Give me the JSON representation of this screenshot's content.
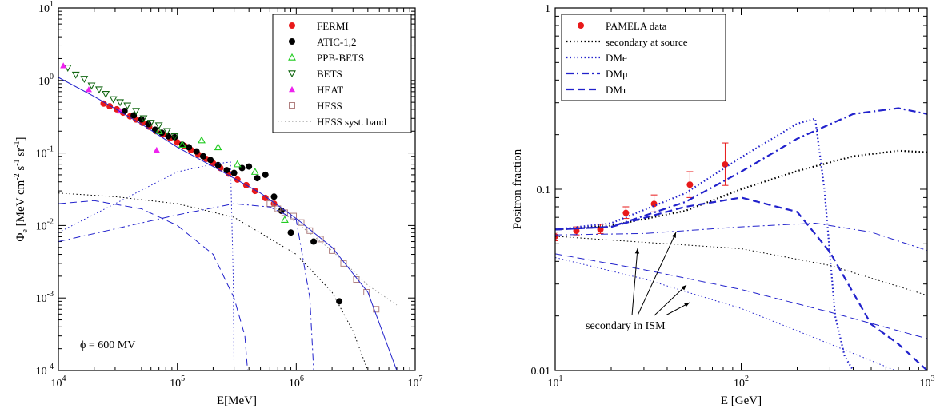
{
  "chart_data": [
    {
      "type": "scatter",
      "xlabel": "E[MeV]",
      "ylabel": "Φe [MeV cm-2 s-1 sr-1]",
      "xscale": "log",
      "yscale": "log",
      "xlim": [
        10000,
        10000000
      ],
      "ylim": [
        0.0001,
        10
      ],
      "x_ticks": [
        {
          "m": "10",
          "e": "4"
        },
        {
          "m": "10",
          "e": "5"
        },
        {
          "m": "10",
          "e": "6"
        },
        {
          "m": "10",
          "e": "7"
        }
      ],
      "y_ticks": [
        {
          "m": "10",
          "e": "-4"
        },
        {
          "m": "10",
          "e": "-3"
        },
        {
          "m": "10",
          "e": "-2"
        },
        {
          "m": "10",
          "e": "-1"
        },
        {
          "m": "10",
          "e": "0"
        },
        {
          "m": "10",
          "e": "1"
        }
      ],
      "legend_position": "top-right",
      "annotation": "ϕ = 600 MV",
      "series": [
        {
          "name": "FERMI",
          "color": "#e8191a",
          "marker": "filled-circle",
          "x": [
            24000,
            27000,
            31000,
            35000,
            40000,
            45000,
            51000,
            58000,
            66000,
            76000,
            87000,
            100000,
            115000,
            130000,
            150000,
            175000,
            200000,
            230000,
            270000,
            320000,
            380000,
            450000,
            550000,
            650000,
            750000
          ],
          "y": [
            0.48,
            0.44,
            0.4,
            0.36,
            0.32,
            0.29,
            0.26,
            0.23,
            0.2,
            0.18,
            0.16,
            0.14,
            0.125,
            0.11,
            0.095,
            0.083,
            0.072,
            0.062,
            0.052,
            0.043,
            0.036,
            0.03,
            0.024,
            0.02,
            0.016
          ]
        },
        {
          "name": "ATIC-1,2",
          "color": "#000000",
          "marker": "filled-circle",
          "x": [
            36000,
            43000,
            50000,
            57000,
            65000,
            74000,
            84000,
            95000,
            110000,
            125000,
            145000,
            165000,
            190000,
            220000,
            260000,
            300000,
            350000,
            400000,
            470000,
            550000,
            650000,
            750000,
            900000,
            1400000,
            2300000
          ],
          "y": [
            0.38,
            0.33,
            0.29,
            0.25,
            0.21,
            0.19,
            0.17,
            0.165,
            0.13,
            0.12,
            0.105,
            0.09,
            0.08,
            0.068,
            0.058,
            0.053,
            0.062,
            0.065,
            0.045,
            0.05,
            0.025,
            0.016,
            0.008,
            0.006,
            0.0009
          ]
        },
        {
          "name": "PPB-BETS",
          "color": "#22cc22",
          "marker": "open-triangle-up",
          "x": [
            70000,
            110000,
            160000,
            220000,
            320000,
            450000,
            800000
          ],
          "y": [
            0.2,
            0.13,
            0.15,
            0.12,
            0.07,
            0.055,
            0.012
          ]
        },
        {
          "name": "BETS",
          "color": "#116611",
          "marker": "open-triangle-down",
          "x": [
            12000,
            14000,
            16500,
            19000,
            22000,
            25000,
            29000,
            33000,
            38000,
            45000,
            52000,
            60000,
            70000,
            82000,
            95000
          ],
          "y": [
            1.5,
            1.2,
            1.05,
            0.85,
            0.75,
            0.65,
            0.55,
            0.5,
            0.45,
            0.38,
            0.3,
            0.26,
            0.24,
            0.2,
            0.17
          ]
        },
        {
          "name": "HEAT",
          "color": "#ee22ee",
          "marker": "filled-triangle-up",
          "x": [
            11000,
            18000,
            33000,
            67000
          ],
          "y": [
            1.6,
            0.75,
            0.38,
            0.11
          ]
        },
        {
          "name": "HESS",
          "color": "#b08080",
          "marker": "open-square",
          "x": [
            600000,
            700000,
            800000,
            950000,
            1100000,
            1300000,
            1600000,
            2000000,
            2500000,
            3200000,
            3900000,
            4700000
          ],
          "y": [
            0.02,
            0.017,
            0.015,
            0.0135,
            0.011,
            0.0085,
            0.0065,
            0.0045,
            0.003,
            0.0018,
            0.0012,
            0.0007
          ]
        },
        {
          "name": "HESS syst. band",
          "color": "#999999",
          "marker": "dotted-line",
          "x": [
            600000,
            1000000,
            2000000,
            4000000,
            7000000
          ],
          "y": [
            0.02,
            0.011,
            0.0045,
            0.0015,
            0.0008
          ]
        },
        {
          "color": "#2222cc",
          "style": "solid",
          "x": [
            10000,
            20000,
            50000,
            100000,
            200000,
            500000,
            1000000,
            2000000,
            4000000,
            7000000
          ],
          "y": [
            1.1,
            0.6,
            0.25,
            0.12,
            0.065,
            0.028,
            0.0125,
            0.005,
            0.0012,
            0.0001
          ]
        },
        {
          "color": "#2222cc",
          "style": "dotted",
          "x": [
            10000,
            30000,
            100000,
            200000,
            280000,
            295000,
            300000
          ],
          "y": [
            0.008,
            0.02,
            0.055,
            0.07,
            0.075,
            0.002,
            0.0001
          ]
        },
        {
          "color": "#2222cc",
          "style": "dashdot",
          "x": [
            10000,
            30000,
            100000,
            300000,
            600000,
            1000000,
            1300000,
            1400000
          ],
          "y": [
            0.006,
            0.009,
            0.014,
            0.02,
            0.018,
            0.012,
            0.001,
            0.0001
          ]
        },
        {
          "color": "#2222cc",
          "style": "dashed",
          "x": [
            10000,
            20000,
            50000,
            100000,
            200000,
            300000,
            370000,
            390000
          ],
          "y": [
            0.02,
            0.022,
            0.017,
            0.01,
            0.004,
            0.001,
            0.0003,
            0.0001
          ]
        },
        {
          "color": "#000000",
          "style": "dotted",
          "x": [
            10000,
            30000,
            100000,
            300000,
            1000000,
            2000000,
            3000000,
            4000000
          ],
          "y": [
            0.028,
            0.025,
            0.02,
            0.013,
            0.004,
            0.0012,
            0.00035,
            0.0001
          ]
        }
      ]
    },
    {
      "type": "scatter",
      "xlabel": "E [GeV]",
      "ylabel": "Positron fraction",
      "xscale": "log",
      "yscale": "log",
      "xlim": [
        10,
        1000
      ],
      "ylim": [
        0.01,
        1
      ],
      "x_ticks": [
        {
          "m": "10",
          "e": "1"
        },
        {
          "m": "10",
          "e": "2"
        },
        {
          "m": "10",
          "e": "3"
        }
      ],
      "y_ticks": [
        {
          "m": "0.01",
          "e": ""
        },
        {
          "m": "0.1",
          "e": ""
        },
        {
          "m": "1",
          "e": ""
        }
      ],
      "legend_position": "top-left",
      "annotation": "secondary in ISM",
      "series": [
        {
          "name": "PAMELA data",
          "color": "#e8191a",
          "marker": "filled-circle",
          "x": [
            10,
            13,
            17.5,
            24,
            34,
            53,
            82
          ],
          "y": [
            0.055,
            0.059,
            0.06,
            0.074,
            0.083,
            0.106,
            0.137
          ],
          "err_low": [
            0.052,
            0.056,
            0.057,
            0.069,
            0.075,
            0.09,
            0.105
          ],
          "err_high": [
            0.058,
            0.062,
            0.064,
            0.08,
            0.093,
            0.125,
            0.18
          ]
        },
        {
          "name": "secondary at source",
          "color": "#000000",
          "style": "dotted",
          "weight": "thick",
          "x": [
            10,
            20,
            50,
            100,
            200,
            400,
            700,
            1000
          ],
          "y": [
            0.06,
            0.063,
            0.076,
            0.1,
            0.126,
            0.152,
            0.163,
            0.16
          ]
        },
        {
          "name": "DMe",
          "color": "#2222cc",
          "style": "dotted",
          "weight": "thick",
          "x": [
            10,
            20,
            50,
            100,
            200,
            250,
            280,
            320,
            360,
            400
          ],
          "y": [
            0.06,
            0.065,
            0.095,
            0.15,
            0.23,
            0.245,
            0.1,
            0.02,
            0.012,
            0.01
          ]
        },
        {
          "name": "DMμ",
          "color": "#2222cc",
          "style": "dashdot",
          "weight": "thick",
          "x": [
            10,
            20,
            50,
            100,
            200,
            400,
            700,
            1000
          ],
          "y": [
            0.06,
            0.062,
            0.085,
            0.125,
            0.19,
            0.26,
            0.28,
            0.26
          ]
        },
        {
          "name": "DMτ",
          "color": "#2222cc",
          "style": "dashed",
          "weight": "thick",
          "x": [
            10,
            20,
            50,
            100,
            200,
            300,
            500,
            700,
            1000
          ],
          "y": [
            0.06,
            0.062,
            0.08,
            0.09,
            0.075,
            0.045,
            0.018,
            0.014,
            0.01
          ]
        },
        {
          "color": "#000000",
          "style": "dotted",
          "weight": "thin",
          "x": [
            10,
            30,
            100,
            300,
            1000
          ],
          "y": [
            0.055,
            0.051,
            0.047,
            0.038,
            0.026
          ]
        },
        {
          "color": "#2222cc",
          "style": "dashdot",
          "weight": "thin",
          "x": [
            10,
            30,
            100,
            250,
            500,
            1000
          ],
          "y": [
            0.056,
            0.057,
            0.062,
            0.065,
            0.058,
            0.046
          ]
        },
        {
          "color": "#2222cc",
          "style": "dashed",
          "weight": "thin",
          "x": [
            10,
            30,
            100,
            300,
            1000
          ],
          "y": [
            0.044,
            0.036,
            0.028,
            0.021,
            0.015
          ]
        },
        {
          "color": "#2222cc",
          "style": "dotted",
          "weight": "thin",
          "x": [
            10,
            30,
            100,
            300,
            1000
          ],
          "y": [
            0.042,
            0.032,
            0.022,
            0.014,
            0.0085
          ]
        }
      ]
    }
  ]
}
